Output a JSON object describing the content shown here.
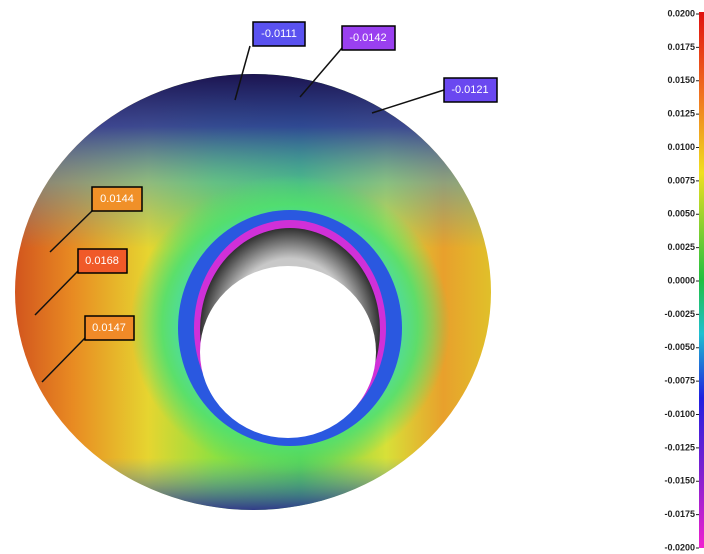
{
  "annotations": [
    {
      "label": "-0.0111"
    },
    {
      "label": "-0.0142"
    },
    {
      "label": "-0.0121"
    },
    {
      "label": "0.0144"
    },
    {
      "label": "0.0168"
    },
    {
      "label": "0.0147"
    }
  ],
  "colorbar": {
    "ticks": [
      "0.0200",
      "0.0175",
      "0.0150",
      "0.0125",
      "0.0100",
      "0.0075",
      "0.0050",
      "0.0025",
      "0.0000",
      "-0.0025",
      "-0.0050",
      "-0.0075",
      "-0.0100",
      "-0.0125",
      "-0.0150",
      "-0.0175",
      "-0.0200"
    ]
  }
}
